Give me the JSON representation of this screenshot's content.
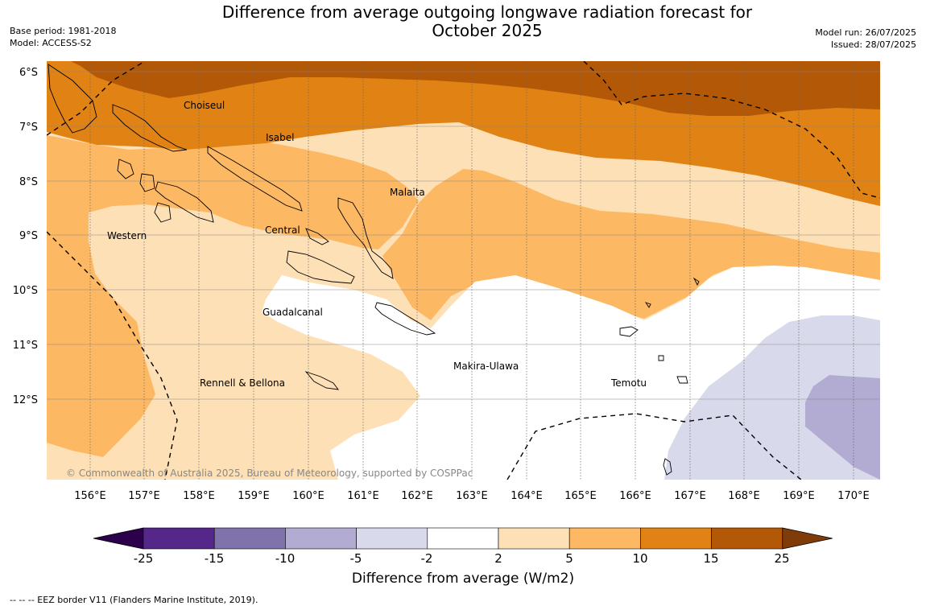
{
  "header": {
    "title_line1": "Difference from average outgoing longwave radiation forecast for",
    "title_line2": "October 2025",
    "base_period": "Base period: 1981-2018",
    "model": "Model: ACCESS-S2",
    "model_run": "Model run: 26/07/2025",
    "issued": "Issued: 28/07/2025"
  },
  "map": {
    "lat_labels": [
      "6°S",
      "7°S",
      "8°S",
      "9°S",
      "10°S",
      "11°S",
      "12°S"
    ],
    "lon_labels": [
      "156°E",
      "157°E",
      "158°E",
      "159°E",
      "160°E",
      "161°E",
      "162°E",
      "163°E",
      "164°E",
      "165°E",
      "166°E",
      "167°E",
      "168°E",
      "169°E",
      "170°E"
    ],
    "place_labels": [
      "Choiseul",
      "Isabel",
      "Malaita",
      "Central",
      "Western",
      "Guadalcanal",
      "Makira-Ulawa",
      "Temotu",
      "Rennell & Bellona"
    ],
    "copyright": "© Commonwealth of Australia 2025, Bureau of Meteorology, supported by COSPPac"
  },
  "colorbar": {
    "ticks": [
      "-25",
      "-15",
      "-10",
      "-5",
      "-2",
      "2",
      "5",
      "10",
      "15",
      "25"
    ],
    "colors": [
      "#2d004b",
      "#542788",
      "#8073ac",
      "#b2abd2",
      "#d8daeb",
      "#ffffff",
      "#fee0b6",
      "#fdb863",
      "#e08214",
      "#b35806",
      "#7f3b08"
    ],
    "label": "Difference from average (W/m2)"
  },
  "footnote": "--  --  -- EEZ border V11 (Flanders Marine Institute, 2019)."
}
